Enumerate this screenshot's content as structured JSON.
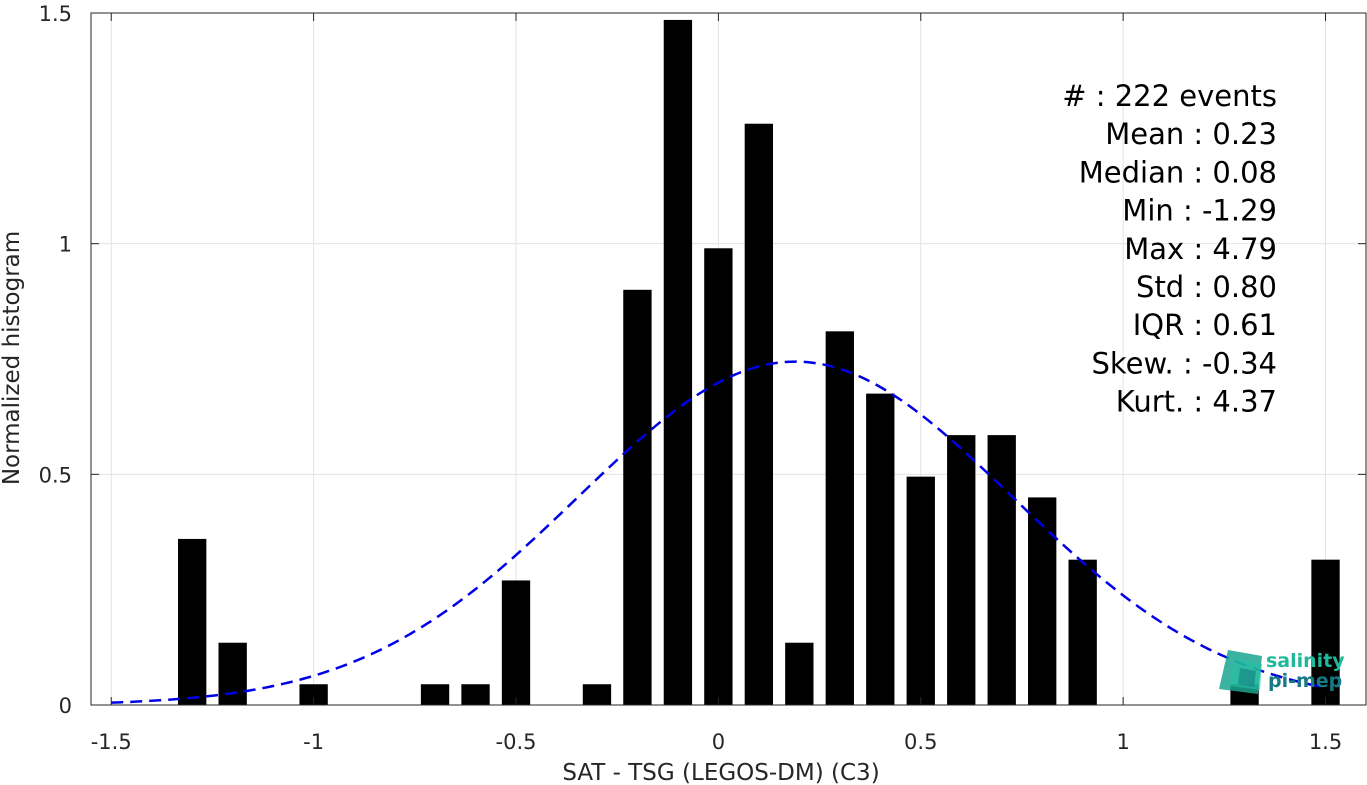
{
  "chart_data": {
    "type": "bar",
    "xlabel": "SAT - TSG (LEGOS-DM) (C3)",
    "ylabel": "Normalized histogram",
    "xlim": [
      -1.55,
      1.6
    ],
    "ylim": [
      0,
      1.5
    ],
    "xticks": [
      -1.5,
      -1,
      -0.5,
      0,
      0.5,
      1,
      1.5
    ],
    "xtick_labels": [
      "-1.5",
      "-1",
      "-0.5",
      "0",
      "0.5",
      "1",
      "1.5"
    ],
    "yticks": [
      0,
      0.5,
      1,
      1.5
    ],
    "ytick_labels": [
      "0",
      "0.5",
      "1",
      "1.5"
    ],
    "grid": true,
    "bar_color": "#000000",
    "bin_width": 0.1,
    "bar_width": 0.07,
    "bars": [
      {
        "x": -1.3,
        "y": 0.36
      },
      {
        "x": -1.2,
        "y": 0.135
      },
      {
        "x": -1.0,
        "y": 0.045
      },
      {
        "x": -0.7,
        "y": 0.045
      },
      {
        "x": -0.6,
        "y": 0.045
      },
      {
        "x": -0.5,
        "y": 0.27
      },
      {
        "x": -0.3,
        "y": 0.045
      },
      {
        "x": -0.2,
        "y": 0.9
      },
      {
        "x": -0.1,
        "y": 1.485
      },
      {
        "x": 0.0,
        "y": 0.99
      },
      {
        "x": 0.1,
        "y": 1.26
      },
      {
        "x": 0.2,
        "y": 0.135
      },
      {
        "x": 0.3,
        "y": 0.81
      },
      {
        "x": 0.4,
        "y": 0.675
      },
      {
        "x": 0.5,
        "y": 0.495
      },
      {
        "x": 0.6,
        "y": 0.585
      },
      {
        "x": 0.7,
        "y": 0.585
      },
      {
        "x": 0.8,
        "y": 0.45
      },
      {
        "x": 0.9,
        "y": 0.315
      },
      {
        "x": 1.3,
        "y": 0.045
      },
      {
        "x": 1.5,
        "y": 0.315
      }
    ],
    "fit_curve": {
      "type": "gaussian",
      "color": "#0000e6",
      "style": "dashed",
      "mean": 0.19,
      "std": 0.536,
      "x_range": [
        -1.5,
        1.5
      ]
    },
    "stats": [
      "#  : 222 events",
      "Mean : 0.23",
      "Median : 0.08",
      "Min : -1.29",
      "Max : 4.79",
      "Std : 0.80",
      "IQR : 0.61",
      "Skew. : -0.34",
      "Kurt. : 4.37"
    ]
  },
  "logo": {
    "line1": "salinity",
    "line2": "pi-mep",
    "color1": "#1fb89a",
    "color2": "#167a86"
  }
}
